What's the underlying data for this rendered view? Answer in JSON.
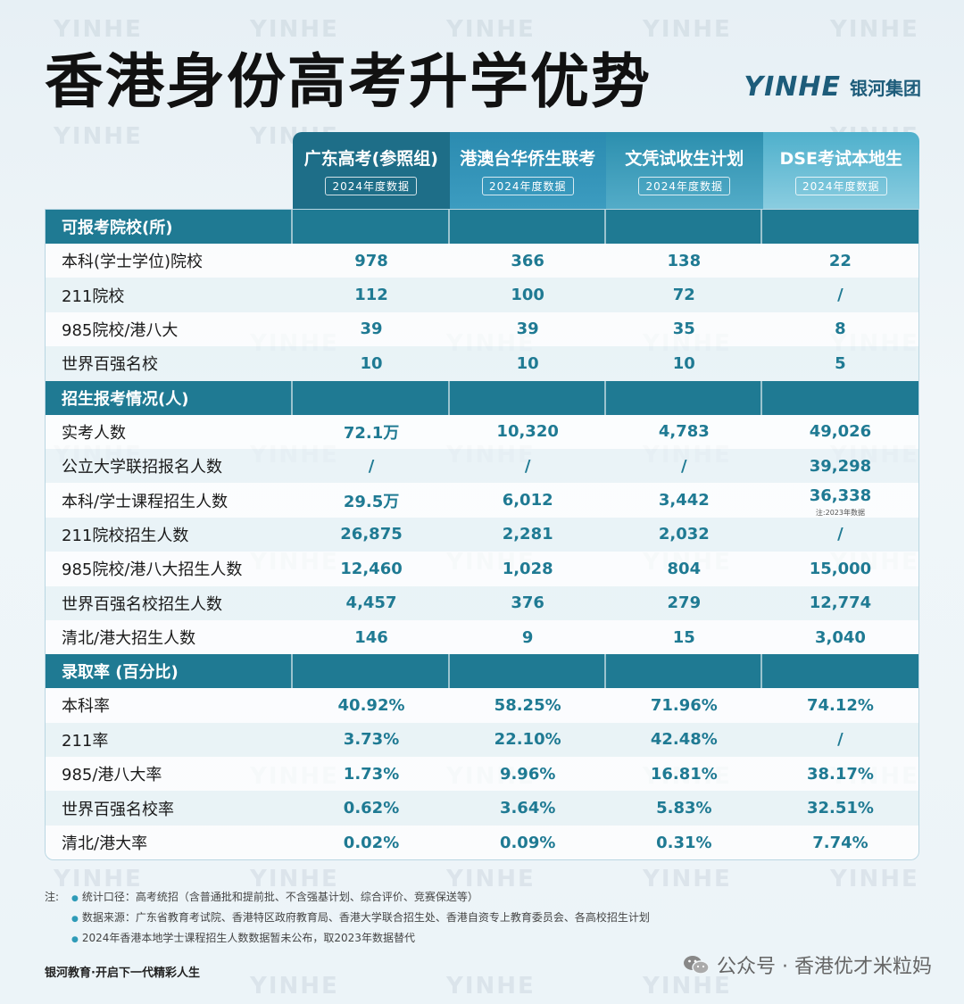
{
  "title": "香港身份高考升学优势",
  "brand": {
    "logo": "YINHE",
    "name": "银河集团"
  },
  "watermark": "YINHE",
  "columns": [
    {
      "title": "广东高考(参照组)",
      "sub": "2024年度数据"
    },
    {
      "title": "港澳台华侨生联考",
      "sub": "2024年度数据"
    },
    {
      "title": "文凭试收生计划",
      "sub": "2024年度数据"
    },
    {
      "title": "DSE考试本地生",
      "sub": "2024年度数据"
    }
  ],
  "sections": [
    {
      "label": "可报考院校(所)",
      "rows": [
        {
          "label": "本科(学士学位)院校",
          "values": [
            "978",
            "366",
            "138",
            "22"
          ]
        },
        {
          "label": "211院校",
          "values": [
            "112",
            "100",
            "72",
            "/"
          ]
        },
        {
          "label": "985院校/港八大",
          "values": [
            "39",
            "39",
            "35",
            "8"
          ]
        },
        {
          "label": "世界百强名校",
          "values": [
            "10",
            "10",
            "10",
            "5"
          ]
        }
      ]
    },
    {
      "label": "招生报考情况(人)",
      "rows": [
        {
          "label": "实考人数",
          "values": [
            "72.1万",
            "10,320",
            "4,783",
            "49,026"
          ]
        },
        {
          "label": "公立大学联招报名人数",
          "values": [
            "/",
            "/",
            "/",
            "39,298"
          ]
        },
        {
          "label": "本科/学士课程招生人数",
          "values": [
            "29.5万",
            "6,012",
            "3,442",
            "36,338"
          ],
          "note": "注:2023年数据"
        },
        {
          "label": "211院校招生人数",
          "values": [
            "26,875",
            "2,281",
            "2,032",
            "/"
          ]
        },
        {
          "label": "985院校/港八大招生人数",
          "values": [
            "12,460",
            "1,028",
            "804",
            "15,000"
          ]
        },
        {
          "label": "世界百强名校招生人数",
          "values": [
            "4,457",
            "376",
            "279",
            "12,774"
          ]
        },
        {
          "label": "清北/港大招生人数",
          "values": [
            "146",
            "9",
            "15",
            "3,040"
          ]
        }
      ]
    },
    {
      "label": "录取率 (百分比)",
      "rows": [
        {
          "label": "本科率",
          "values": [
            "40.92%",
            "58.25%",
            "71.96%",
            "74.12%"
          ]
        },
        {
          "label": "211率",
          "values": [
            "3.73%",
            "22.10%",
            "42.48%",
            "/"
          ]
        },
        {
          "label": "985/港八大率",
          "values": [
            "1.73%",
            "9.96%",
            "16.81%",
            "38.17%"
          ]
        },
        {
          "label": "世界百强名校率",
          "values": [
            "0.62%",
            "3.64%",
            "5.83%",
            "32.51%"
          ]
        },
        {
          "label": "清北/港大率",
          "values": [
            "0.02%",
            "0.09%",
            "0.31%",
            "7.74%"
          ]
        }
      ]
    }
  ],
  "notes": {
    "lead": "注:",
    "items": [
      "统计口径：高考统招（含普通批和提前批、不含强基计划、综合评价、竞赛保送等）",
      "数据来源：广东省教育考试院、香港特区政府教育局、香港大学联合招生处、香港自资专上教育委员会、各高校招生计划",
      "2024年香港本地学士课程招生人数数据暂未公布，取2023年数据替代"
    ]
  },
  "footer": {
    "slogan": "银河教育·开启下一代精彩人生",
    "account": "公众号 · 香港优才米粒妈"
  }
}
